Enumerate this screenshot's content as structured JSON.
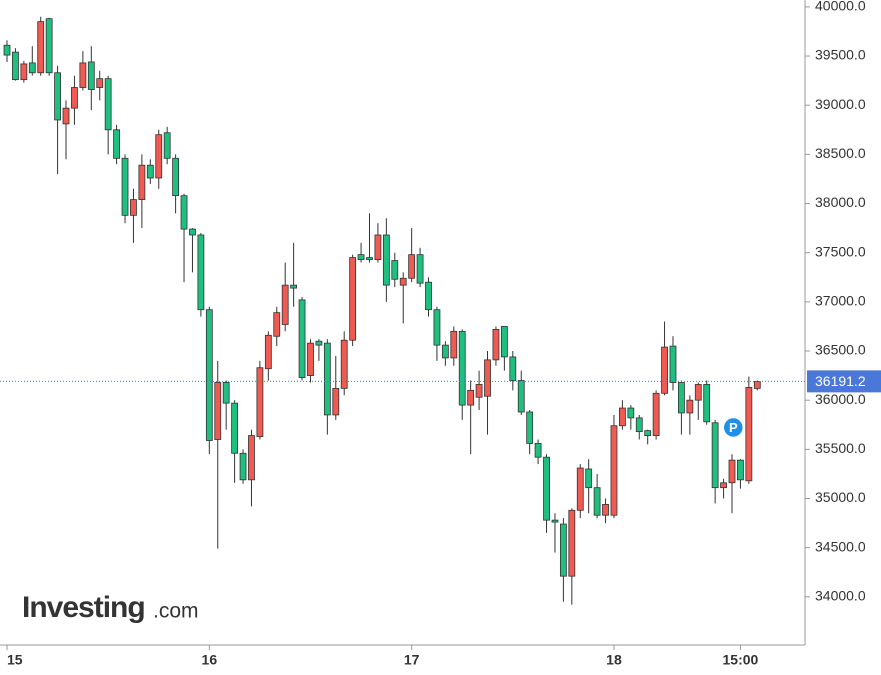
{
  "chart_data": {
    "type": "candlestick",
    "x": [
      0,
      1,
      2,
      3,
      4,
      5,
      6,
      7,
      8,
      9,
      10,
      11,
      12,
      13,
      14,
      15,
      16,
      17,
      18,
      19,
      20,
      21,
      22,
      23,
      24,
      25,
      26,
      27,
      28,
      29,
      30,
      31,
      32,
      33,
      34,
      35,
      36,
      37,
      38,
      39,
      40,
      41,
      42,
      43,
      44,
      45,
      46,
      47,
      48,
      49,
      50,
      51,
      52,
      53,
      54,
      55,
      56,
      57,
      58,
      59,
      60,
      61,
      62,
      63,
      64,
      65,
      66,
      67,
      68,
      69,
      70,
      71,
      72,
      73,
      74,
      75,
      76,
      77,
      78,
      79,
      80,
      81,
      82,
      83,
      84,
      85,
      86,
      87,
      88,
      89
    ],
    "open": [
      39610,
      39540,
      39260,
      39430,
      39330,
      39880,
      39330,
      38810,
      38970,
      39180,
      39440,
      39180,
      39270,
      38750,
      38460,
      37880,
      38040,
      38390,
      38260,
      38720,
      38460,
      38080,
      37740,
      37680,
      36920,
      35600,
      36180,
      35970,
      35460,
      35190,
      35630,
      36320,
      36650,
      36770,
      37170,
      37020,
      36250,
      36600,
      36580,
      35850,
      36120,
      36610,
      37480,
      37450,
      37430,
      37680,
      37420,
      37170,
      37240,
      37480,
      37200,
      36920,
      36560,
      36430,
      36700,
      35950,
      36030,
      36040,
      36410,
      36750,
      36440,
      36200,
      35880,
      35560,
      35420,
      34780,
      34740,
      34210,
      34880,
      35300,
      35110,
      34830,
      34830,
      35740,
      35920,
      35820,
      35690,
      35640,
      36070,
      36550,
      36180,
      35870,
      36000,
      36160,
      35770,
      35110,
      35160,
      35390,
      35180,
      36120
    ],
    "high": [
      39660,
      39580,
      39450,
      39600,
      39900,
      39890,
      39400,
      39050,
      39300,
      39550,
      39600,
      39350,
      39300,
      38800,
      38500,
      38150,
      38500,
      38450,
      38750,
      38780,
      38500,
      38100,
      37750,
      37700,
      36950,
      36400,
      36200,
      36000,
      35500,
      35700,
      36400,
      36700,
      36950,
      37400,
      37600,
      37050,
      36620,
      36620,
      36620,
      36450,
      36700,
      37480,
      37600,
      37900,
      37800,
      37850,
      37500,
      37300,
      37750,
      37550,
      37250,
      36950,
      36600,
      36750,
      36720,
      36200,
      36300,
      36500,
      36750,
      36750,
      36500,
      36300,
      35900,
      35600,
      35450,
      34850,
      34800,
      34900,
      35350,
      35400,
      35250,
      35000,
      35850,
      36000,
      35950,
      35850,
      35700,
      36100,
      36800,
      36650,
      36200,
      36050,
      36180,
      36200,
      35800,
      35200,
      35450,
      35400,
      36240,
      36200
    ],
    "low": [
      39440,
      39250,
      39230,
      39300,
      39300,
      39300,
      38300,
      38450,
      38800,
      39150,
      38950,
      39050,
      38500,
      38400,
      37800,
      37600,
      37750,
      38200,
      38150,
      38400,
      37900,
      37200,
      37300,
      36850,
      35450,
      34490,
      35700,
      35160,
      35150,
      34920,
      35600,
      36200,
      36550,
      36700,
      36950,
      36200,
      36180,
      36400,
      35650,
      35800,
      36050,
      36550,
      37400,
      37400,
      37400,
      37000,
      37150,
      36780,
      37200,
      37150,
      36850,
      36400,
      36350,
      36350,
      35800,
      35450,
      35900,
      35650,
      36350,
      36300,
      36100,
      35850,
      35450,
      35350,
      34650,
      34450,
      33950,
      33920,
      34800,
      34850,
      34800,
      34750,
      34800,
      35700,
      35700,
      35600,
      35550,
      35600,
      36050,
      36100,
      35650,
      35650,
      35800,
      35750,
      34950,
      35000,
      34850,
      35100,
      35150,
      36100
    ],
    "close": [
      39510,
      39260,
      39420,
      39330,
      39850,
      39330,
      38850,
      38970,
      39180,
      39430,
      39160,
      39270,
      38750,
      38460,
      37880,
      38040,
      38390,
      38260,
      38700,
      38460,
      38080,
      37740,
      37680,
      36920,
      35590,
      36180,
      35970,
      35460,
      35190,
      35640,
      36330,
      36660,
      36890,
      37170,
      37140,
      36230,
      36580,
      36560,
      35850,
      36120,
      36610,
      37450,
      37430,
      37430,
      37680,
      37170,
      37230,
      37240,
      37480,
      37190,
      36920,
      36560,
      36430,
      36700,
      35950,
      36100,
      36160,
      36410,
      36720,
      36440,
      36200,
      35880,
      35560,
      35420,
      34780,
      34760,
      34210,
      34880,
      35310,
      35110,
      34830,
      34940,
      35740,
      35920,
      35820,
      35680,
      35640,
      36070,
      36540,
      36180,
      35870,
      36000,
      36160,
      35780,
      35110,
      35160,
      35390,
      35190,
      36130,
      36190
    ],
    "up_color": "#ef5a52",
    "down_color": "#1fbf7f",
    "xlim": [
      -0.83,
      94.66
    ],
    "xticks": [
      {
        "value": 0,
        "label": "15"
      },
      {
        "value": 24,
        "label": "16"
      },
      {
        "value": 48,
        "label": "17"
      },
      {
        "value": 72,
        "label": "18"
      },
      {
        "value": 87,
        "label": "15:00"
      }
    ],
    "ylim": [
      33510,
      40070
    ],
    "yticks": [
      {
        "value": 34000,
        "label": "34000.0"
      },
      {
        "value": 34500,
        "label": "34500.0"
      },
      {
        "value": 35000,
        "label": "35000.0"
      },
      {
        "value": 35500,
        "label": "35500.0"
      },
      {
        "value": 36000,
        "label": "36000.0"
      },
      {
        "value": 36500,
        "label": "36500.0"
      },
      {
        "value": 37000,
        "label": "37000.0"
      },
      {
        "value": 37500,
        "label": "37500.0"
      },
      {
        "value": 38000,
        "label": "38000.0"
      },
      {
        "value": 38500,
        "label": "38500.0"
      },
      {
        "value": 39000,
        "label": "39000.0"
      },
      {
        "value": 39500,
        "label": "39500.0"
      },
      {
        "value": 40000,
        "label": "40000.0"
      }
    ],
    "last_price": 36191.2,
    "last_price_color": "#4a78d8",
    "badge": "P",
    "logo": "Investing",
    "logo_suffix": ".com"
  }
}
